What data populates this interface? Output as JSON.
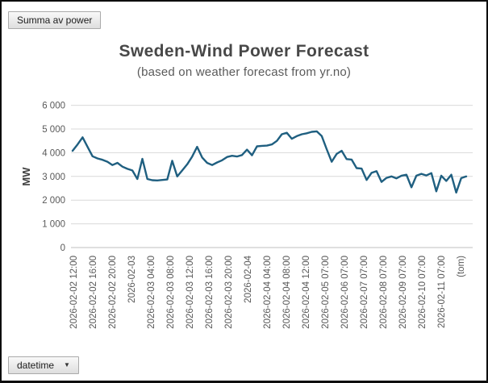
{
  "pivot_field_button": {
    "label": "Summa av power"
  },
  "axis_field_button": {
    "label": "datetime",
    "icon": "dropdown-arrow"
  },
  "chart_data": {
    "type": "line",
    "title": "Sweden-Wind Power Forecast",
    "subtitle": "(based on weather forecast from yr.no)",
    "ylabel": "MW",
    "ylim": [
      0,
      6000
    ],
    "ytick_labels": [
      "0",
      "1 000",
      "2 000",
      "3 000",
      "4 000",
      "5 000",
      "6 000"
    ],
    "x_tick_labels": [
      "2026-02-02 12:00",
      "2026-02-02 16:00",
      "2026-02-02 20:00",
      "2026-02-03",
      "2026-02-03 04:00",
      "2026-02-03 08:00",
      "2026-02-03 12:00",
      "2026-02-03 16:00",
      "2026-02-03 20:00",
      "2026-02-04",
      "2026-02-04 04:00",
      "2026-02-04 08:00",
      "2026-02-04 12:00",
      "2026-02-05 07:00",
      "2026-02-06 07:00",
      "2026-02-07 07:00",
      "2026-02-08 07:00",
      "2026-02-09 07:00",
      "2026-02-10 07:00",
      "2026-02-11 07:00",
      "(tom)"
    ],
    "points_per_label": 4,
    "values": [
      4080,
      4350,
      4650,
      4250,
      3850,
      3760,
      3700,
      3620,
      3480,
      3570,
      3410,
      3320,
      3250,
      2890,
      3740,
      2890,
      2840,
      2830,
      2850,
      2870,
      3660,
      3000,
      3250,
      3510,
      3840,
      4250,
      3800,
      3570,
      3480,
      3590,
      3680,
      3820,
      3870,
      3840,
      3900,
      4130,
      3890,
      4270,
      4290,
      4300,
      4350,
      4500,
      4780,
      4840,
      4590,
      4700,
      4780,
      4820,
      4880,
      4900,
      4700,
      4150,
      3620,
      3950,
      4080,
      3730,
      3710,
      3350,
      3330,
      2850,
      3150,
      3220,
      2770,
      2940,
      3000,
      2920,
      3030,
      3070,
      2540,
      3030,
      3110,
      3040,
      3140,
      2370,
      3030,
      2810,
      3070,
      2320,
      2930,
      3000
    ],
    "grid": true,
    "legend": "none",
    "line_color": "#1F5F80",
    "gridline_color": "#D9D9D9",
    "axis_line_color": "#BFBFBF",
    "axis_text_color": "#595959"
  }
}
